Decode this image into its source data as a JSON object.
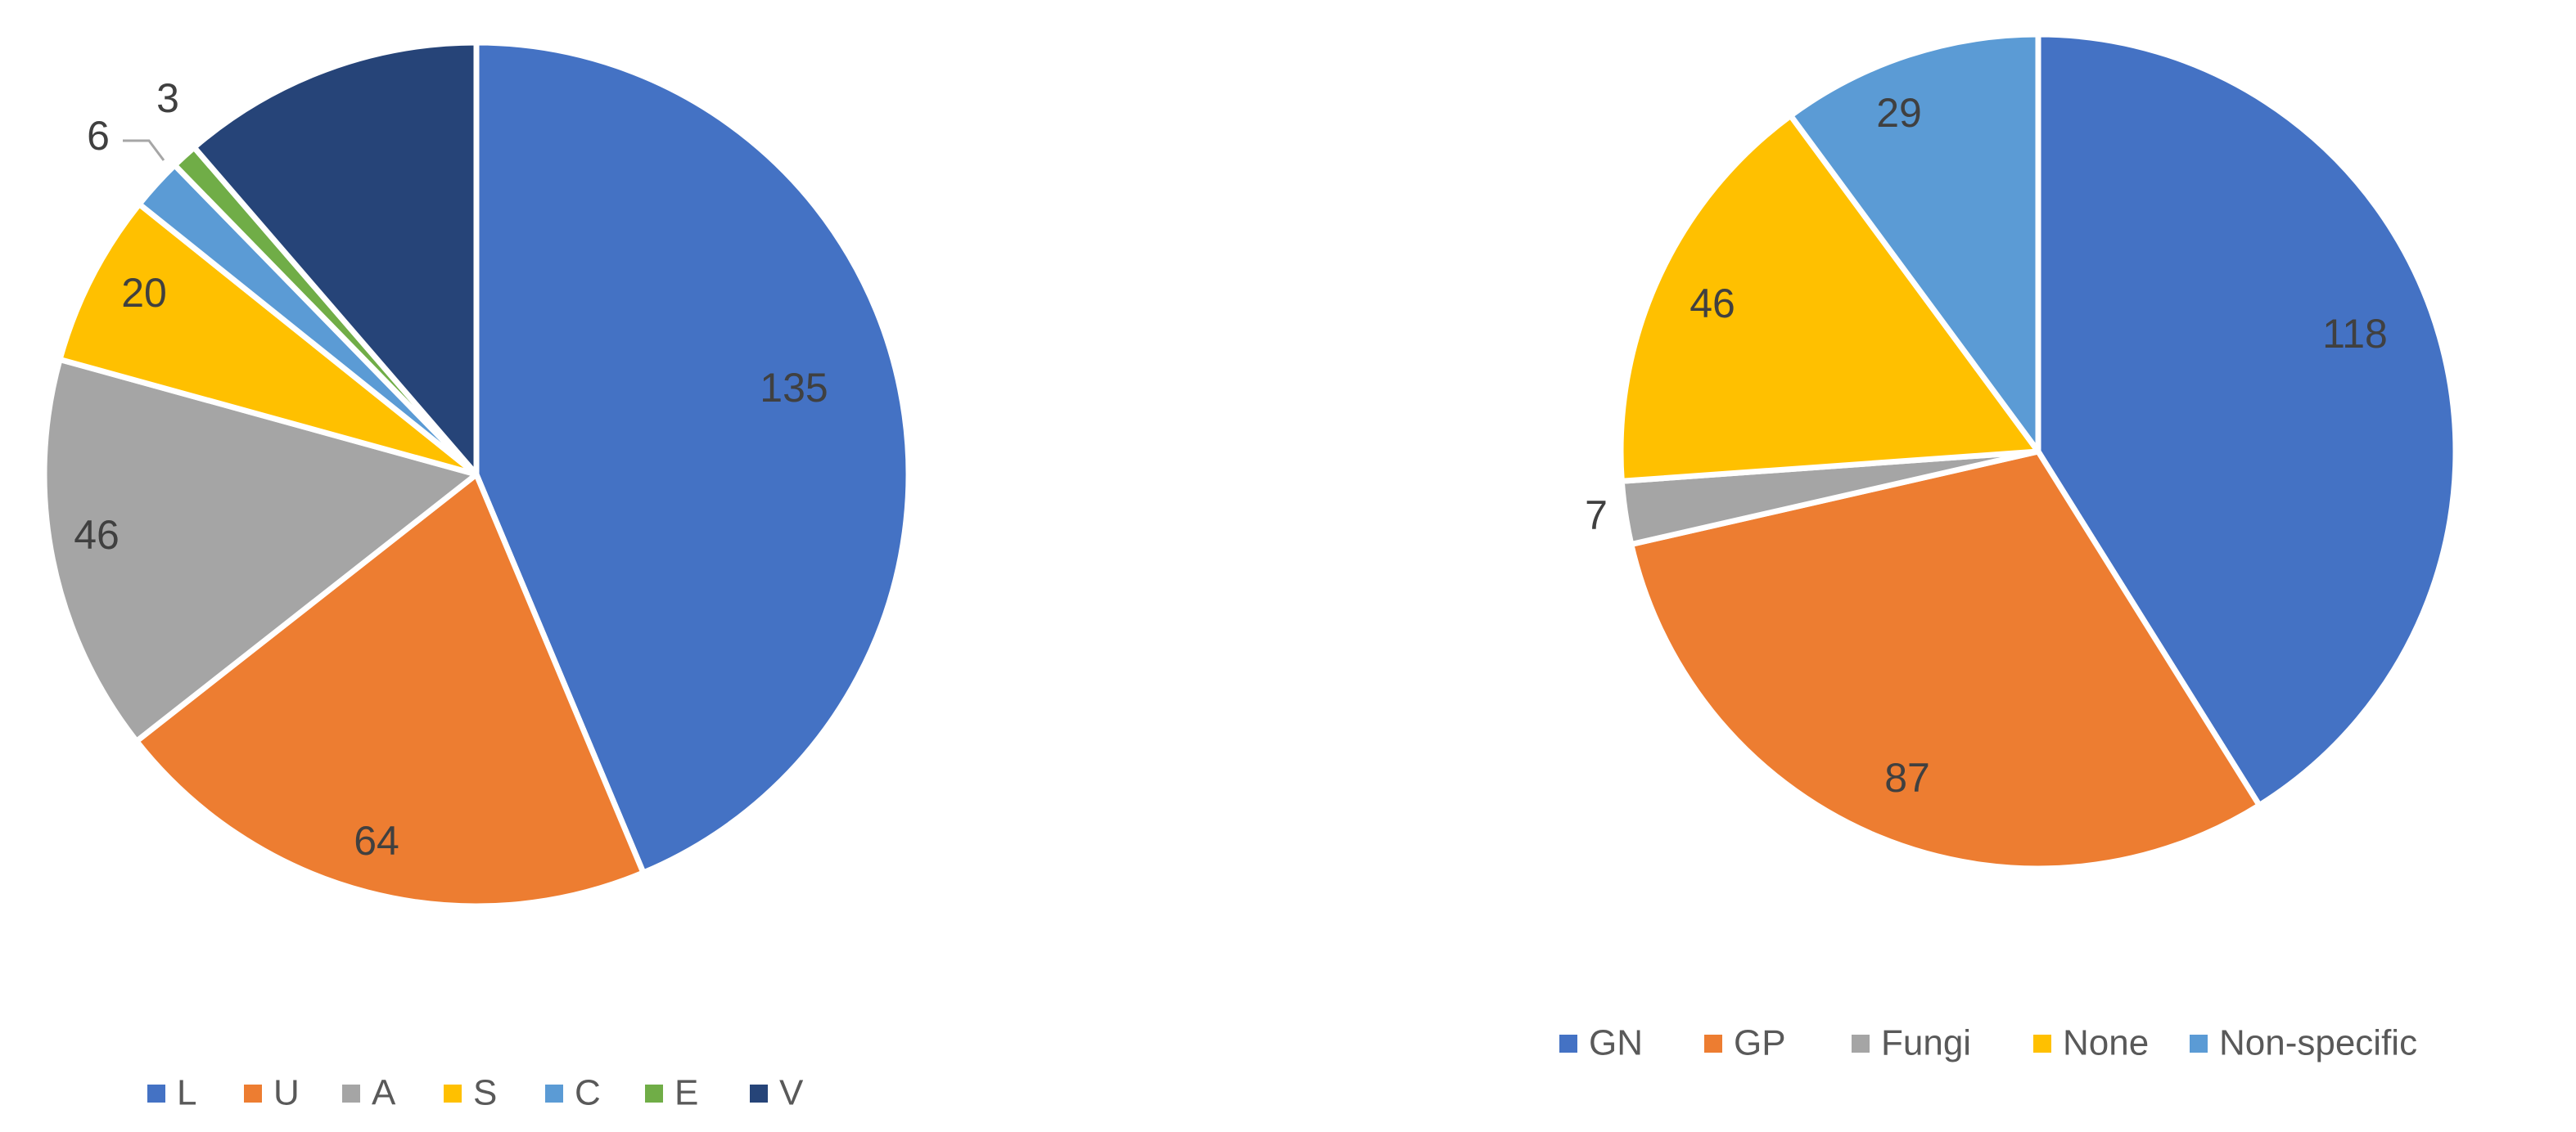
{
  "chart_data": [
    {
      "type": "pie",
      "title": "",
      "legend_position": "bottom",
      "categories": [
        "L",
        "U",
        "A",
        "S",
        "C",
        "E",
        "V"
      ],
      "values": [
        135,
        64,
        46,
        20,
        6,
        3,
        35
      ],
      "data_labels": [
        "135",
        "64",
        "46",
        "20",
        "6",
        "3",
        ""
      ],
      "colors": [
        "#4472C4",
        "#ED7D31",
        "#A5A5A5",
        "#FFC000",
        "#5B9BD5",
        "#70AD47",
        "#264478"
      ]
    },
    {
      "type": "pie",
      "title": "",
      "legend_position": "bottom",
      "categories": [
        "GN",
        "GP",
        "Fungi",
        "None",
        "Non-specific"
      ],
      "values": [
        118,
        87,
        7,
        46,
        29
      ],
      "data_labels": [
        "118",
        "87",
        "7",
        "46",
        "29"
      ],
      "colors": [
        "#4472C4",
        "#ED7D31",
        "#A5A5A5",
        "#FFC000",
        "#5B9BD5"
      ]
    }
  ]
}
